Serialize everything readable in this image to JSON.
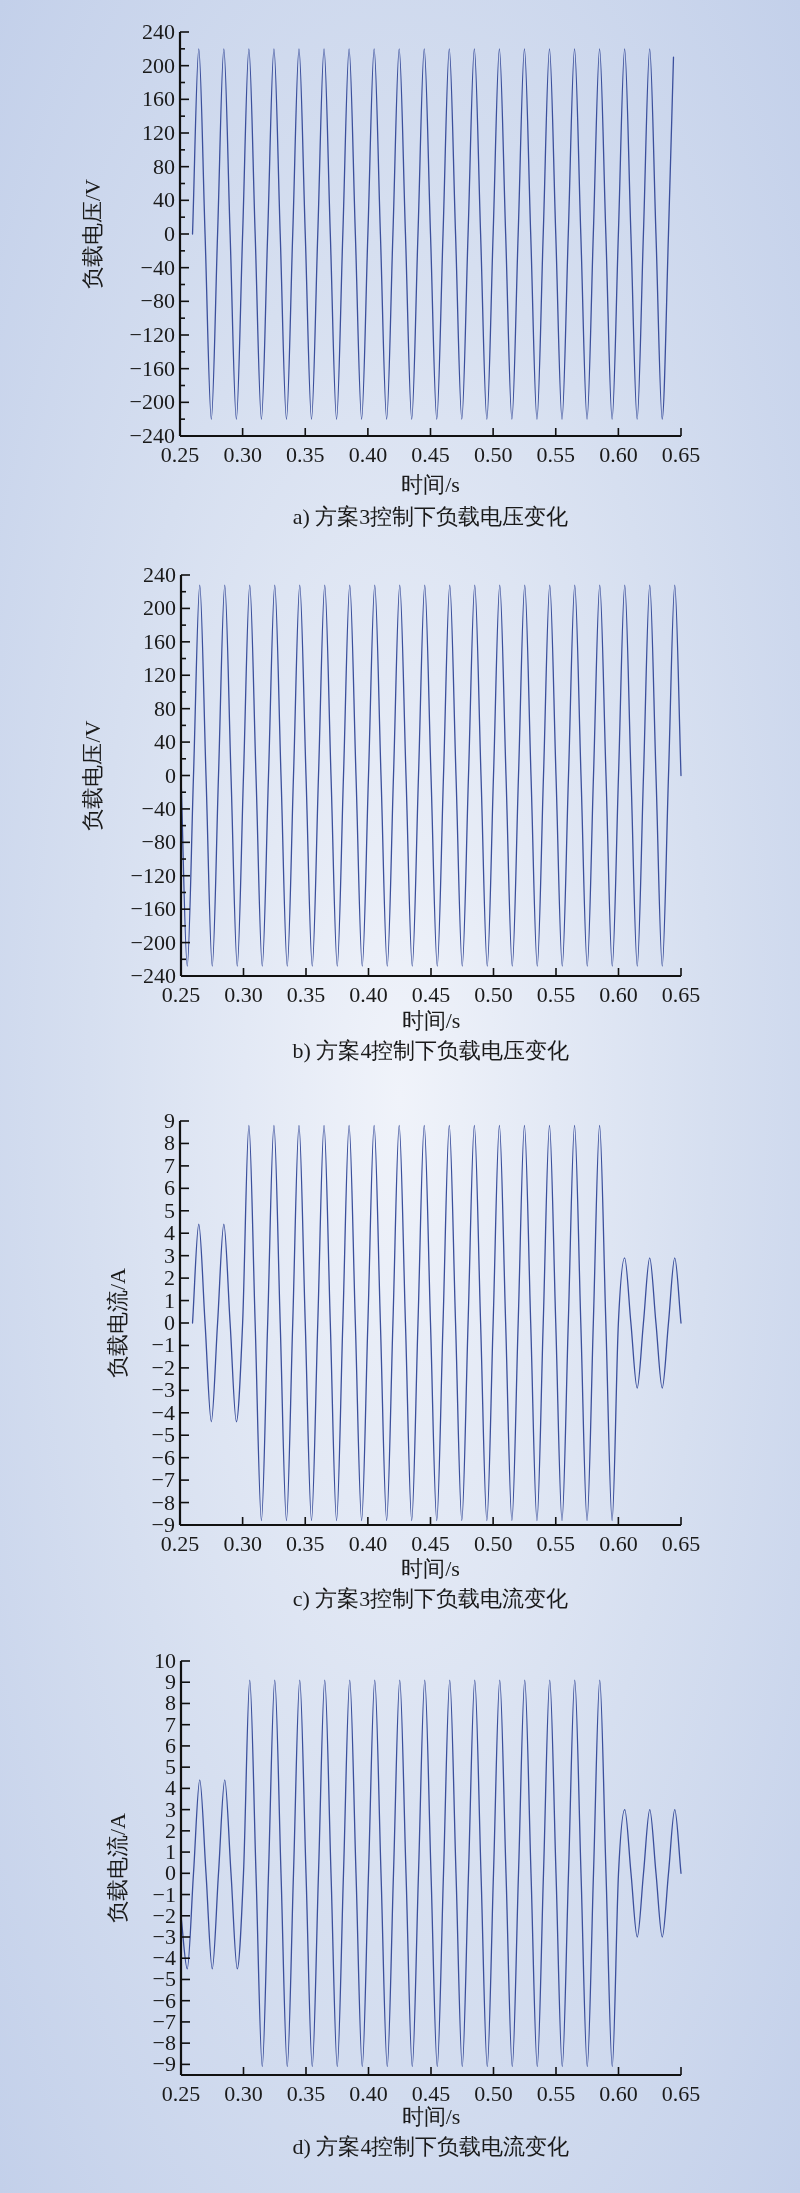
{
  "chart_data": [
    {
      "type": "line",
      "title": "a) 方案3控制下负载电压变化",
      "xlabel": "时间/s",
      "ylabel": "负载电压/V",
      "color": "#3b4f9c",
      "xlim": [
        0.25,
        0.65
      ],
      "ylim": [
        -240,
        240
      ],
      "xticks": [
        {
          "value": 0.25,
          "label": "0.25"
        },
        {
          "value": 0.3,
          "label": "0.30"
        },
        {
          "value": 0.35,
          "label": "0.35"
        },
        {
          "value": 0.4,
          "label": "0.40"
        },
        {
          "value": 0.45,
          "label": "0.45"
        },
        {
          "value": 0.5,
          "label": "0.50"
        },
        {
          "value": 0.55,
          "label": "0.55"
        },
        {
          "value": 0.6,
          "label": "0.60"
        },
        {
          "value": 0.65,
          "label": "0.65"
        }
      ],
      "yticks": [
        -240,
        {
          "value": -220,
          "label": null
        },
        -200,
        {
          "value": -180,
          "label": null
        },
        -160,
        {
          "value": -140,
          "label": null
        },
        -120,
        {
          "value": -100,
          "label": null
        },
        -80,
        {
          "value": -60,
          "label": null
        },
        -40,
        {
          "value": -20,
          "label": null
        },
        0,
        {
          "value": 20,
          "label": null
        },
        40,
        {
          "value": 60,
          "label": null
        },
        80,
        {
          "value": 100,
          "label": null
        },
        120,
        {
          "value": 140,
          "label": null
        },
        160,
        {
          "value": 180,
          "label": null
        },
        200,
        {
          "value": 220,
          "label": null
        },
        240
      ],
      "x": [
        0.26,
        0.265,
        0.27,
        0.275,
        0.28,
        0.285,
        0.29,
        0.295,
        0.3,
        0.305,
        0.31,
        0.315,
        0.32,
        0.325,
        0.33,
        0.335,
        0.34,
        0.345,
        0.35,
        0.355,
        0.36,
        0.365,
        0.37,
        0.375,
        0.38,
        0.385,
        0.39,
        0.395,
        0.4,
        0.405,
        0.41,
        0.415,
        0.42,
        0.425,
        0.43,
        0.435,
        0.44,
        0.445,
        0.45,
        0.455,
        0.46,
        0.465,
        0.47,
        0.475,
        0.48,
        0.485,
        0.49,
        0.495,
        0.5,
        0.505,
        0.51,
        0.515,
        0.52,
        0.525,
        0.53,
        0.535,
        0.54,
        0.545,
        0.55,
        0.555,
        0.56,
        0.565,
        0.57,
        0.575,
        0.58,
        0.585,
        0.59,
        0.595,
        0.6,
        0.605,
        0.61,
        0.615,
        0.62,
        0.625,
        0.63,
        0.635,
        0.64,
        0.644
      ],
      "values": [
        0,
        220,
        0,
        -220,
        0,
        220,
        0,
        -220,
        0,
        220,
        0,
        -220,
        0,
        220,
        0,
        -220,
        0,
        220,
        0,
        -220,
        0,
        220,
        0,
        -220,
        0,
        220,
        0,
        -220,
        0,
        220,
        0,
        -220,
        0,
        220,
        0,
        -220,
        0,
        220,
        0,
        -220,
        0,
        220,
        0,
        -220,
        0,
        220,
        0,
        -220,
        0,
        220,
        0,
        -220,
        0,
        220,
        0,
        -220,
        0,
        220,
        0,
        -220,
        0,
        220,
        0,
        -220,
        0,
        220,
        0,
        -220,
        0,
        220,
        0,
        -220,
        0,
        220,
        0,
        -220,
        0,
        210
      ]
    },
    {
      "type": "line",
      "title": "b) 方案4控制下负载电压变化",
      "xlabel": "时间/s",
      "ylabel": "负载电压/V",
      "color": "#3b4f9c",
      "xlim": [
        0.25,
        0.65
      ],
      "ylim": [
        -240,
        240
      ],
      "xticks": [
        {
          "value": 0.25,
          "label": "0.25"
        },
        {
          "value": 0.3,
          "label": "0.30"
        },
        {
          "value": 0.35,
          "label": "0.35"
        },
        {
          "value": 0.4,
          "label": "0.40"
        },
        {
          "value": 0.45,
          "label": "0.45"
        },
        {
          "value": 0.5,
          "label": "0.50"
        },
        {
          "value": 0.55,
          "label": "0.55"
        },
        {
          "value": 0.6,
          "label": "0.60"
        },
        {
          "value": 0.65,
          "label": "0.65"
        }
      ],
      "yticks": [
        -240,
        {
          "value": -220,
          "label": null
        },
        -200,
        {
          "value": -180,
          "label": null
        },
        -160,
        {
          "value": -140,
          "label": null
        },
        -120,
        {
          "value": -100,
          "label": null
        },
        -80,
        {
          "value": -60,
          "label": null
        },
        -40,
        {
          "value": -20,
          "label": null
        },
        0,
        {
          "value": 20,
          "label": null
        },
        40,
        {
          "value": 60,
          "label": null
        },
        80,
        {
          "value": 100,
          "label": null
        },
        120,
        {
          "value": 140,
          "label": null
        },
        160,
        {
          "value": 180,
          "label": null
        },
        200,
        {
          "value": 220,
          "label": null
        },
        240
      ],
      "x": [
        0.25,
        0.255,
        0.26,
        0.265,
        0.27,
        0.275,
        0.28,
        0.285,
        0.29,
        0.295,
        0.3,
        0.305,
        0.31,
        0.315,
        0.32,
        0.325,
        0.33,
        0.335,
        0.34,
        0.345,
        0.35,
        0.355,
        0.36,
        0.365,
        0.37,
        0.375,
        0.38,
        0.385,
        0.39,
        0.395,
        0.4,
        0.405,
        0.41,
        0.415,
        0.42,
        0.425,
        0.43,
        0.435,
        0.44,
        0.445,
        0.45,
        0.455,
        0.46,
        0.465,
        0.47,
        0.475,
        0.48,
        0.485,
        0.49,
        0.495,
        0.5,
        0.505,
        0.51,
        0.515,
        0.52,
        0.525,
        0.53,
        0.535,
        0.54,
        0.545,
        0.55,
        0.555,
        0.56,
        0.565,
        0.57,
        0.575,
        0.58,
        0.585,
        0.59,
        0.595,
        0.6,
        0.605,
        0.61,
        0.615,
        0.62,
        0.625,
        0.63,
        0.635,
        0.64,
        0.645,
        0.65
      ],
      "values": [
        0,
        -228,
        0,
        228,
        0,
        -228,
        0,
        228,
        0,
        -228,
        0,
        228,
        0,
        -228,
        0,
        228,
        0,
        -228,
        0,
        228,
        0,
        -228,
        0,
        228,
        0,
        -228,
        0,
        228,
        0,
        -228,
        0,
        228,
        0,
        -228,
        0,
        228,
        0,
        -228,
        0,
        228,
        0,
        -228,
        0,
        228,
        0,
        -228,
        0,
        228,
        0,
        -228,
        0,
        228,
        0,
        -228,
        0,
        228,
        0,
        -228,
        0,
        228,
        0,
        -228,
        0,
        228,
        0,
        -228,
        0,
        228,
        0,
        -228,
        0,
        228,
        0,
        -228,
        0,
        228,
        0,
        -228,
        0,
        228,
        0
      ]
    },
    {
      "type": "line",
      "title": "c) 方案3控制下负载电流变化",
      "xlabel": "时间/s",
      "ylabel": "负载电流/A",
      "color": "#3b4f9c",
      "xlim": [
        0.25,
        0.65
      ],
      "ylim": [
        -9,
        9
      ],
      "xticks": [
        {
          "value": 0.25,
          "label": "0.25"
        },
        {
          "value": 0.3,
          "label": "0.30"
        },
        {
          "value": 0.35,
          "label": "0.35"
        },
        {
          "value": 0.4,
          "label": "0.40"
        },
        {
          "value": 0.45,
          "label": "0.45"
        },
        {
          "value": 0.5,
          "label": "0.50"
        },
        {
          "value": 0.55,
          "label": "0.55"
        },
        {
          "value": 0.6,
          "label": "0.60"
        },
        {
          "value": 0.65,
          "label": "0.65"
        }
      ],
      "yticks": [
        -9,
        -8,
        -7,
        -6,
        -5,
        -4,
        -3,
        -2,
        -1,
        0,
        1,
        2,
        3,
        4,
        5,
        6,
        7,
        8,
        9
      ],
      "x": [
        0.26,
        0.265,
        0.27,
        0.275,
        0.28,
        0.285,
        0.29,
        0.295,
        0.3,
        0.305,
        0.31,
        0.315,
        0.32,
        0.325,
        0.33,
        0.335,
        0.34,
        0.345,
        0.35,
        0.355,
        0.36,
        0.365,
        0.37,
        0.375,
        0.38,
        0.385,
        0.39,
        0.395,
        0.4,
        0.405,
        0.41,
        0.415,
        0.42,
        0.425,
        0.43,
        0.435,
        0.44,
        0.445,
        0.45,
        0.455,
        0.46,
        0.465,
        0.47,
        0.475,
        0.48,
        0.485,
        0.49,
        0.495,
        0.5,
        0.505,
        0.51,
        0.515,
        0.52,
        0.525,
        0.53,
        0.535,
        0.54,
        0.545,
        0.55,
        0.555,
        0.56,
        0.565,
        0.57,
        0.575,
        0.58,
        0.585,
        0.59,
        0.595,
        0.6,
        0.605,
        0.61,
        0.615,
        0.62,
        0.625,
        0.63,
        0.635,
        0.64,
        0.645,
        0.65
      ],
      "values": [
        0,
        4.4,
        0,
        -4.4,
        0,
        4.4,
        0,
        -4.4,
        0,
        8.8,
        0,
        -8.8,
        0,
        8.8,
        0,
        -8.8,
        0,
        8.8,
        0,
        -8.8,
        0,
        8.8,
        0,
        -8.8,
        0,
        8.8,
        0,
        -8.8,
        0,
        8.8,
        0,
        -8.8,
        0,
        8.8,
        0,
        -8.8,
        0,
        8.8,
        0,
        -8.8,
        0,
        8.8,
        0,
        -8.8,
        0,
        8.8,
        0,
        -8.8,
        0,
        8.8,
        0,
        -8.8,
        0,
        8.8,
        0,
        -8.8,
        0,
        8.8,
        0,
        -8.8,
        0,
        8.8,
        0,
        -8.8,
        0,
        8.8,
        0,
        -8.8,
        0,
        2.9,
        0,
        -2.9,
        0,
        2.9,
        0,
        -2.9,
        0,
        2.9,
        0
      ]
    },
    {
      "type": "line",
      "title": "d) 方案4控制下负载电流变化",
      "xlabel": "时间/s",
      "ylabel": "负载电流/A",
      "color": "#3b4f9c",
      "xlim": [
        0.25,
        0.65
      ],
      "ylim": [
        -9.5,
        10
      ],
      "xticks": [
        {
          "value": 0.25,
          "label": "0.25"
        },
        {
          "value": 0.3,
          "label": "0.30"
        },
        {
          "value": 0.35,
          "label": "0.35"
        },
        {
          "value": 0.4,
          "label": "0.40"
        },
        {
          "value": 0.45,
          "label": "0.45"
        },
        {
          "value": 0.5,
          "label": "0.50"
        },
        {
          "value": 0.55,
          "label": "0.55"
        },
        {
          "value": 0.6,
          "label": "0.60"
        },
        {
          "value": 0.65,
          "label": "0.65"
        }
      ],
      "yticks": [
        -9,
        -8,
        -7,
        -6,
        -5,
        -4,
        -3,
        -2,
        -1,
        0,
        1,
        2,
        3,
        4,
        5,
        6,
        7,
        8,
        9,
        10
      ],
      "x": [
        0.25,
        0.255,
        0.26,
        0.265,
        0.27,
        0.275,
        0.28,
        0.285,
        0.29,
        0.295,
        0.3,
        0.305,
        0.31,
        0.315,
        0.32,
        0.325,
        0.33,
        0.335,
        0.34,
        0.345,
        0.35,
        0.355,
        0.36,
        0.365,
        0.37,
        0.375,
        0.38,
        0.385,
        0.39,
        0.395,
        0.4,
        0.405,
        0.41,
        0.415,
        0.42,
        0.425,
        0.43,
        0.435,
        0.44,
        0.445,
        0.45,
        0.455,
        0.46,
        0.465,
        0.47,
        0.475,
        0.48,
        0.485,
        0.49,
        0.495,
        0.5,
        0.505,
        0.51,
        0.515,
        0.52,
        0.525,
        0.53,
        0.535,
        0.54,
        0.545,
        0.55,
        0.555,
        0.56,
        0.565,
        0.57,
        0.575,
        0.58,
        0.585,
        0.59,
        0.595,
        0.6,
        0.605,
        0.61,
        0.615,
        0.62,
        0.625,
        0.63,
        0.635,
        0.64,
        0.645,
        0.65
      ],
      "values": [
        -2,
        -4.5,
        0,
        4.4,
        0,
        -4.5,
        0,
        4.4,
        0,
        -4.5,
        0,
        9.1,
        0,
        -9.1,
        0,
        9.1,
        0,
        -9.1,
        0,
        9.1,
        0,
        -9.1,
        0,
        9.1,
        0,
        -9.1,
        0,
        9.1,
        0,
        -9.1,
        0,
        9.1,
        0,
        -9.1,
        0,
        9.1,
        0,
        -9.1,
        0,
        9.1,
        0,
        -9.1,
        0,
        9.1,
        0,
        -9.1,
        0,
        9.1,
        0,
        -9.1,
        0,
        9.1,
        0,
        -9.1,
        0,
        9.1,
        0,
        -9.1,
        0,
        9.1,
        0,
        -9.1,
        0,
        9.1,
        0,
        -9.1,
        0,
        9.1,
        0,
        -9.1,
        0,
        3,
        0,
        -3,
        0,
        3,
        0,
        -3,
        0,
        3,
        0
      ]
    }
  ]
}
